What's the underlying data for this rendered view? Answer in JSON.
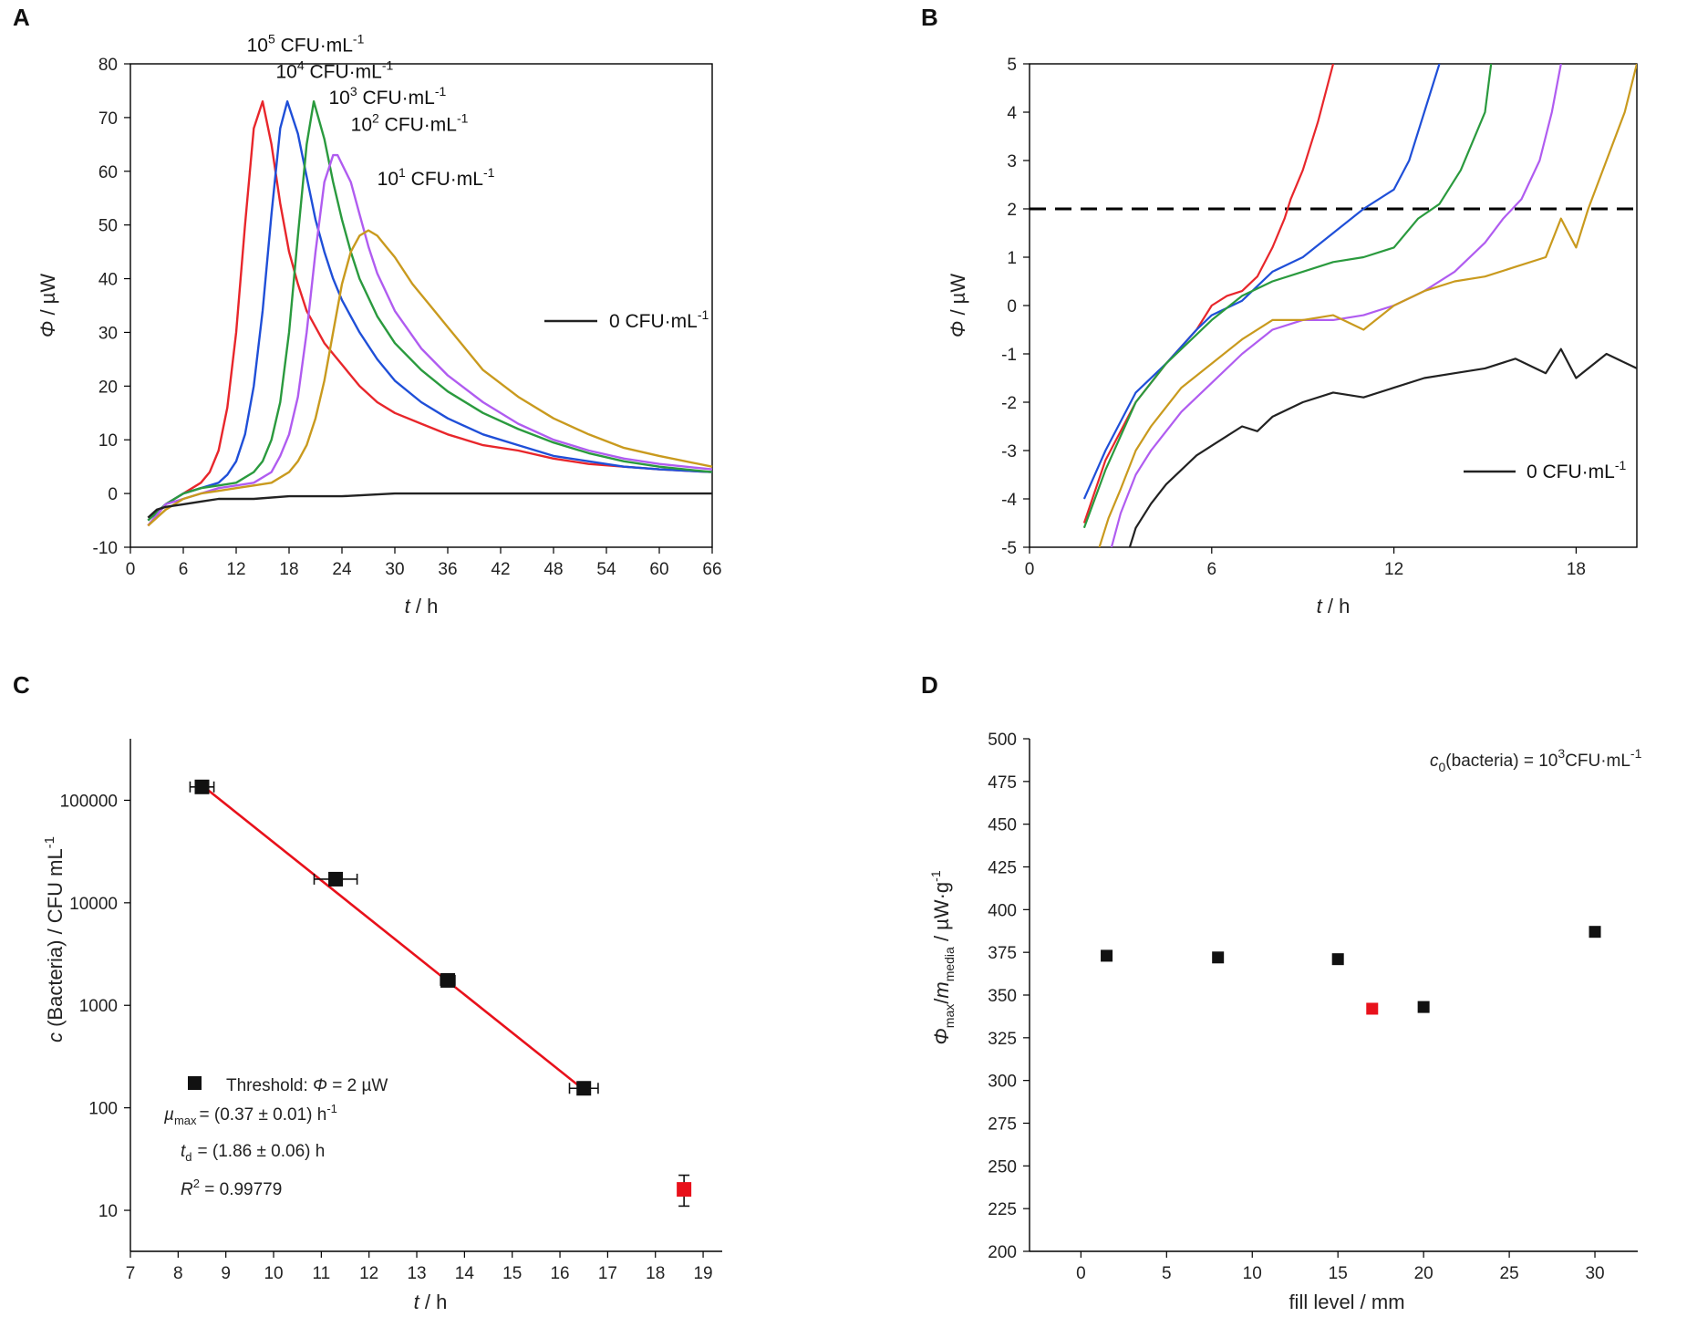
{
  "chart_data": [
    {
      "panel": "A",
      "type": "line",
      "xlabel": "t / h",
      "ylabel": "Φ / µW",
      "xlim": [
        0,
        66
      ],
      "ylim": [
        -10,
        80
      ],
      "xticks": [
        0,
        6,
        12,
        18,
        24,
        30,
        36,
        42,
        48,
        54,
        60,
        66
      ],
      "yticks": [
        -10,
        0,
        10,
        20,
        30,
        40,
        50,
        60,
        70,
        80
      ],
      "series": [
        {
          "name": "10^5 CFU·mL^-1",
          "label_base": "10",
          "label_exp": "5",
          "label_rest": " CFU·mL",
          "label_rest_exp": "-1",
          "color": "#e8262b",
          "x": [
            2,
            4,
            6,
            8,
            9,
            10,
            11,
            12,
            13,
            14,
            15,
            16,
            17,
            18,
            19,
            20,
            21,
            22,
            23,
            24,
            26,
            28,
            30,
            33,
            36,
            40,
            44,
            48,
            52,
            56,
            60,
            66
          ],
          "y": [
            -6,
            -2,
            0,
            2,
            4,
            8,
            16,
            30,
            50,
            68,
            73,
            65,
            54,
            45,
            39,
            34,
            31,
            28,
            26,
            24,
            20,
            17,
            15,
            13,
            11,
            9,
            8,
            6.5,
            5.5,
            5,
            4.5,
            4
          ]
        },
        {
          "name": "10^4 CFU·mL^-1",
          "label_base": "10",
          "label_exp": "4",
          "label_rest": " CFU·mL",
          "label_rest_exp": "-1",
          "color": "#1f4fd8",
          "x": [
            2,
            4,
            6,
            8,
            10,
            11,
            12,
            13,
            14,
            15,
            16,
            17,
            17.8,
            19,
            20,
            21,
            22,
            23,
            24,
            26,
            28,
            30,
            33,
            36,
            40,
            44,
            48,
            52,
            56,
            60,
            66
          ],
          "y": [
            -5,
            -2,
            0,
            1,
            2,
            3.5,
            6,
            11,
            20,
            34,
            52,
            68,
            73,
            67,
            59,
            51,
            45,
            40,
            36,
            30,
            25,
            21,
            17,
            14,
            11,
            9,
            7,
            6,
            5,
            4.5,
            4
          ]
        },
        {
          "name": "10^3 CFU·mL^-1",
          "label_base": "10",
          "label_exp": "3",
          "label_rest": " CFU·mL",
          "label_rest_exp": "-1",
          "color": "#2a9a3e",
          "x": [
            2,
            4,
            6,
            8,
            10,
            12,
            14,
            15,
            16,
            17,
            18,
            19,
            20,
            20.8,
            22,
            23,
            24,
            25,
            26,
            28,
            30,
            33,
            36,
            40,
            44,
            48,
            52,
            56,
            60,
            66
          ],
          "y": [
            -5,
            -2,
            0,
            1,
            1.5,
            2,
            4,
            6,
            10,
            17,
            30,
            48,
            65,
            73,
            66,
            58,
            51,
            45,
            40,
            33,
            28,
            23,
            19,
            15,
            12,
            9.5,
            7.5,
            6,
            5,
            4
          ]
        },
        {
          "name": "10^2 CFU·mL^-1",
          "label_base": "10",
          "label_exp": "2",
          "label_rest": " CFU·mL",
          "label_rest_exp": "-1",
          "color": "#b05cf0",
          "x": [
            2,
            4,
            6,
            8,
            10,
            12,
            14,
            16,
            17,
            18,
            19,
            20,
            21,
            22,
            23,
            23.5,
            25,
            26,
            27,
            28,
            30,
            33,
            36,
            40,
            44,
            48,
            52,
            56,
            60,
            66
          ],
          "y": [
            -6,
            -2,
            -1,
            0,
            1,
            1.5,
            2,
            4,
            7,
            11,
            18,
            30,
            45,
            58,
            63,
            63,
            58,
            52,
            46,
            41,
            34,
            27,
            22,
            17,
            13,
            10,
            8,
            6.5,
            5.5,
            4.5
          ]
        },
        {
          "name": "10^1 CFU·mL^-1",
          "label_base": "10",
          "label_exp": "1",
          "label_rest": " CFU·mL",
          "label_rest_exp": "-1",
          "color": "#c99a1e",
          "x": [
            2,
            4,
            6,
            8,
            10,
            12,
            14,
            16,
            18,
            19,
            20,
            21,
            22,
            23,
            24,
            25,
            26,
            27,
            28,
            29,
            30,
            32,
            34,
            36,
            38,
            40,
            44,
            48,
            52,
            56,
            60,
            66
          ],
          "y": [
            -6,
            -3,
            -1,
            0,
            0.5,
            1,
            1.5,
            2,
            4,
            6,
            9,
            14,
            21,
            30,
            39,
            45,
            48,
            49,
            48,
            46,
            44,
            39,
            35,
            31,
            27,
            23,
            18,
            14,
            11,
            8.5,
            7,
            5
          ]
        },
        {
          "name": "0 CFU·mL^-1",
          "label_base": "0",
          "label_exp": "",
          "label_rest": " CFU·mL",
          "label_rest_exp": "-1",
          "color": "#222222",
          "x": [
            2,
            3,
            4,
            6,
            8,
            10,
            14,
            18,
            24,
            30,
            36,
            42,
            48,
            54,
            60,
            66
          ],
          "y": [
            -4.5,
            -3,
            -2.5,
            -2,
            -1.5,
            -1,
            -1,
            -0.5,
            -0.5,
            0,
            0,
            0,
            0,
            0,
            0,
            0
          ]
        }
      ]
    },
    {
      "panel": "B",
      "type": "line",
      "xlabel": "t / h",
      "ylabel": "Φ / µW",
      "xlim": [
        0,
        20
      ],
      "ylim": [
        -5,
        5
      ],
      "xticks": [
        0,
        6,
        12,
        18
      ],
      "yticks": [
        -5,
        -4,
        -3,
        -2,
        -1,
        0,
        1,
        2,
        3,
        4,
        5
      ],
      "threshold": 2,
      "series": [
        {
          "name": "10^5 CFU·mL^-1",
          "color": "#e8262b",
          "x": [
            1.8,
            2.5,
            3.5,
            4.5,
            5.5,
            6,
            6.5,
            7,
            7.5,
            8,
            8.4,
            8.6,
            9,
            9.5,
            10
          ],
          "y": [
            -4.5,
            -3.2,
            -2,
            -1.2,
            -0.5,
            0,
            0.2,
            0.3,
            0.6,
            1.2,
            1.8,
            2.2,
            2.8,
            3.8,
            5
          ]
        },
        {
          "name": "10^4 CFU·mL^-1",
          "color": "#1f4fd8",
          "x": [
            1.8,
            2.5,
            3.5,
            4.5,
            5.5,
            6,
            7,
            8,
            9,
            10,
            11,
            12,
            12.5,
            13,
            13.5
          ],
          "y": [
            -4,
            -3,
            -1.8,
            -1.2,
            -0.5,
            -0.2,
            0.1,
            0.7,
            1,
            1.5,
            2,
            2.4,
            3,
            4,
            5
          ]
        },
        {
          "name": "10^3 CFU·mL^-1",
          "color": "#2a9a3e",
          "x": [
            1.8,
            2.5,
            3.5,
            4.5,
            5.5,
            6,
            7,
            8,
            9,
            10,
            11,
            12,
            12.8,
            13.5,
            14.2,
            15,
            15.2
          ],
          "y": [
            -4.6,
            -3.4,
            -2,
            -1.2,
            -0.6,
            -0.3,
            0.2,
            0.5,
            0.7,
            0.9,
            1,
            1.2,
            1.8,
            2.1,
            2.8,
            4,
            5
          ]
        },
        {
          "name": "10^2 CFU·mL^-1",
          "color": "#b05cf0",
          "x": [
            2.7,
            3,
            3.5,
            4,
            5,
            6,
            7,
            8,
            9,
            10,
            11,
            12,
            13,
            14,
            15,
            15.6,
            16.2,
            16.8,
            17.2,
            17.5
          ],
          "y": [
            -5,
            -4.3,
            -3.5,
            -3,
            -2.2,
            -1.6,
            -1,
            -0.5,
            -0.3,
            -0.3,
            -0.2,
            0,
            0.3,
            0.7,
            1.3,
            1.8,
            2.2,
            3,
            4,
            5
          ]
        },
        {
          "name": "10^1 CFU·mL^-1",
          "color": "#c99a1e",
          "x": [
            2.3,
            2.6,
            3,
            3.5,
            4,
            5,
            6,
            7,
            8,
            9,
            10,
            11,
            12,
            13,
            14,
            15,
            16,
            17,
            17.5,
            18,
            18.4,
            19,
            19.6,
            20
          ],
          "y": [
            -5,
            -4.4,
            -3.8,
            -3,
            -2.5,
            -1.7,
            -1.2,
            -0.7,
            -0.3,
            -0.3,
            -0.2,
            -0.5,
            0,
            0.3,
            0.5,
            0.6,
            0.8,
            1,
            1.8,
            1.2,
            2,
            3,
            4,
            5
          ]
        },
        {
          "name": "0 CFU·mL^-1",
          "label_base": "0",
          "label_rest": " CFU·mL",
          "label_rest_exp": "-1",
          "color": "#222222",
          "x": [
            3.3,
            3.5,
            4,
            4.5,
            5,
            5.5,
            6,
            6.5,
            7,
            7.5,
            8,
            9,
            10,
            11,
            12,
            13,
            14,
            15,
            16,
            17,
            17.5,
            18,
            19,
            20
          ],
          "y": [
            -5,
            -4.6,
            -4.1,
            -3.7,
            -3.4,
            -3.1,
            -2.9,
            -2.7,
            -2.5,
            -2.6,
            -2.3,
            -2,
            -1.8,
            -1.9,
            -1.7,
            -1.5,
            -1.4,
            -1.3,
            -1.1,
            -1.4,
            -0.9,
            -1.5,
            -1,
            -1.3
          ]
        }
      ]
    },
    {
      "panel": "C",
      "type": "scatter",
      "xlabel": "t / h",
      "ylabel": "c (Bacteria) / CFU mL-1",
      "yscale": "log",
      "xlim": [
        7,
        19.4
      ],
      "ylim_log10": [
        0.6,
        5.6
      ],
      "xticks": [
        7,
        8,
        9,
        10,
        11,
        12,
        13,
        14,
        15,
        16,
        17,
        18,
        19
      ],
      "yticks": [
        10,
        100,
        1000,
        10000,
        100000
      ],
      "ytick_labels": [
        "10",
        "100",
        "1000",
        "10000",
        "100000"
      ],
      "points": [
        {
          "x": 8.5,
          "y": 135000,
          "xerr": 0.25,
          "color": "#111111"
        },
        {
          "x": 11.3,
          "y": 17000,
          "xerr": 0.45,
          "color": "#111111"
        },
        {
          "x": 13.65,
          "y": 1750,
          "xerr": 0.15,
          "color": "#111111"
        },
        {
          "x": 16.5,
          "y": 155,
          "xerr": 0.3,
          "color": "#111111"
        },
        {
          "x": 18.6,
          "y": 16,
          "yerr_low": 11,
          "yerr_high": 22,
          "color": "#e8111b"
        }
      ],
      "fit": {
        "x": [
          8.5,
          16.5
        ],
        "y": [
          140000,
          150
        ],
        "color": "#e8111b"
      },
      "legend": {
        "marker_label": "Threshold: ",
        "marker_symbol": "Φ",
        "marker_rest": " = 2 µW",
        "mu_text": "= (0.37 ± 0.01) h",
        "mu_exp": "-1",
        "td_text": "= (1.86 ± 0.06) h",
        "r2_text": " = 0.99779"
      }
    },
    {
      "panel": "D",
      "type": "scatter",
      "xlabel": "fill level / mm",
      "ylabel": "Φmax/mmedia / µW·g-1",
      "xlim": [
        -3,
        32.5
      ],
      "ylim": [
        200,
        500
      ],
      "xticks": [
        0,
        5,
        10,
        15,
        20,
        25,
        30
      ],
      "yticks": [
        200,
        225,
        250,
        275,
        300,
        325,
        350,
        375,
        400,
        425,
        450,
        475,
        500
      ],
      "points": [
        {
          "x": 1.5,
          "y": 373,
          "color": "#111111"
        },
        {
          "x": 8,
          "y": 372,
          "color": "#111111"
        },
        {
          "x": 15,
          "y": 371,
          "color": "#111111"
        },
        {
          "x": 17,
          "y": 342,
          "color": "#e8111b"
        },
        {
          "x": 20,
          "y": 343,
          "color": "#111111"
        },
        {
          "x": 30,
          "y": 387,
          "color": "#111111"
        }
      ],
      "annotation": "c0(bacteria) = 10^3CFU·mL^-1"
    }
  ],
  "panel_labels": [
    "A",
    "B",
    "C",
    "D"
  ],
  "text": {
    "a_xlabel_t": "t",
    "a_xlabel_unit": " / h",
    "b_xlabel_t": "t",
    "b_xlabel_unit": " / h",
    "c_xlabel_t": "t",
    "c_xlabel_unit": " / h",
    "ylabel_phi": "Φ",
    "ylabel_phi_unit": " / µW",
    "c_ylabel_c": "c",
    "c_ylabel_rest": " (Bacteria) / CFU mL",
    "c_ylabel_exp": "-1",
    "d_xlabel": "fill level / mm",
    "d_ylabel_phi": "Φ",
    "d_ylabel_max": "max",
    "d_ylabel_slash": "/",
    "d_ylabel_m": "m",
    "d_ylabel_media": "media",
    "d_ylabel_unit": " / µW·g",
    "d_ylabel_exp": "-1",
    "d_ann_c": "c",
    "d_ann_sub": "0",
    "d_ann_mid": "(bacteria) = 10",
    "d_ann_exp": "3",
    "d_ann_unit": "CFU·mL",
    "d_ann_exp2": "-1",
    "c_mu": "µ",
    "c_mu_sub": "max",
    "c_td": "t",
    "c_td_sub": "d",
    "c_r2": "R",
    "c_r2_exp": "2"
  }
}
